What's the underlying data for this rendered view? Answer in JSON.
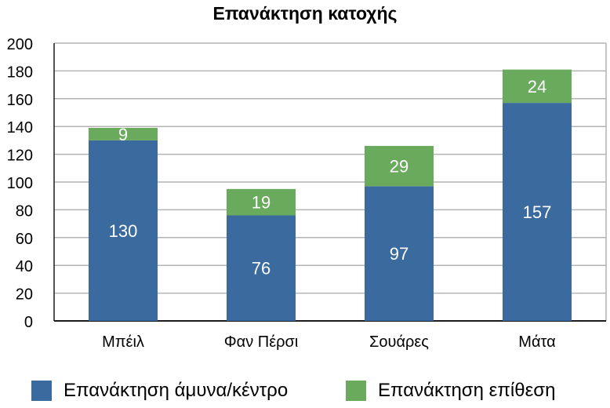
{
  "chart_data": {
    "type": "bar",
    "stacked": true,
    "title": "Επανάκτηση κατοχής",
    "categories": [
      "Μπέιλ",
      "Φαν Πέρσι",
      "Σουάρες",
      "Μάτα"
    ],
    "series": [
      {
        "name": "Επανάκτηση άμυνα/κέντρο",
        "color": "#3a6a9e",
        "values": [
          130,
          76,
          97,
          157
        ]
      },
      {
        "name": "Επανάκτηση επίθεση",
        "color": "#6aaa5d",
        "values": [
          9,
          19,
          29,
          24
        ]
      }
    ],
    "ylim": [
      0,
      200
    ],
    "yticks": [
      0,
      20,
      40,
      60,
      80,
      100,
      120,
      140,
      160,
      180,
      200
    ],
    "grid": true,
    "legend_position": "bottom",
    "data_labels": true
  }
}
